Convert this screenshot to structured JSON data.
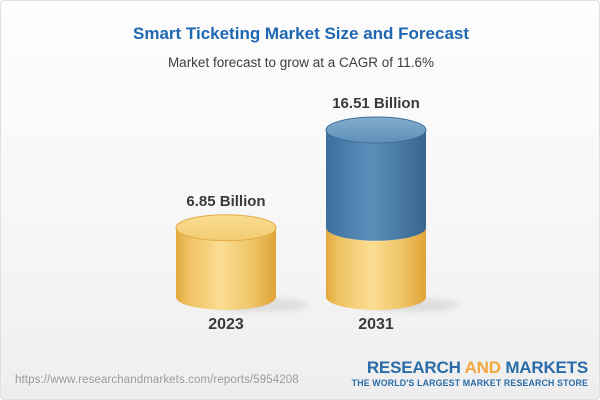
{
  "header": {
    "title": "Smart Ticketing Market Size and Forecast",
    "subtitle": "Market forecast to grow at a CAGR of 11.6%"
  },
  "chart_data": {
    "type": "bar",
    "subtype": "3d-cylinder-stacked",
    "title": "Smart Ticketing Market Size and Forecast",
    "subtitle": "Market forecast to grow at a CAGR of 11.6%",
    "cagr_percent": 11.6,
    "unit": "Billion",
    "categories": [
      "2023",
      "2031"
    ],
    "values": [
      6.85,
      16.51
    ],
    "value_labels": [
      "6.85 Billion",
      "16.51 Billion"
    ],
    "axes": "none",
    "legend": "none",
    "bars": [
      {
        "category": "2023",
        "value": 6.85,
        "label": "6.85 Billion",
        "segments": [
          {
            "value": 6.85,
            "color": "gold"
          }
        ]
      },
      {
        "category": "2031",
        "value": 16.51,
        "label": "16.51 Billion",
        "segments": [
          {
            "value": 6.85,
            "color": "gold"
          },
          {
            "value": 9.66,
            "color": "blue"
          }
        ]
      }
    ],
    "colors": {
      "gold": "#F5CF74",
      "blue": "#4C80AF",
      "title_blue": "#1E68B2",
      "label_gray": "#3A3A3A"
    }
  },
  "footer": {
    "source_url": "https://www.researchandmarkets.com/reports/5954208",
    "logo": {
      "word1": "RESEARCH",
      "word2": "AND",
      "word3": "MARKETS",
      "tagline": "THE WORLD'S LARGEST MARKET RESEARCH STORE"
    }
  }
}
